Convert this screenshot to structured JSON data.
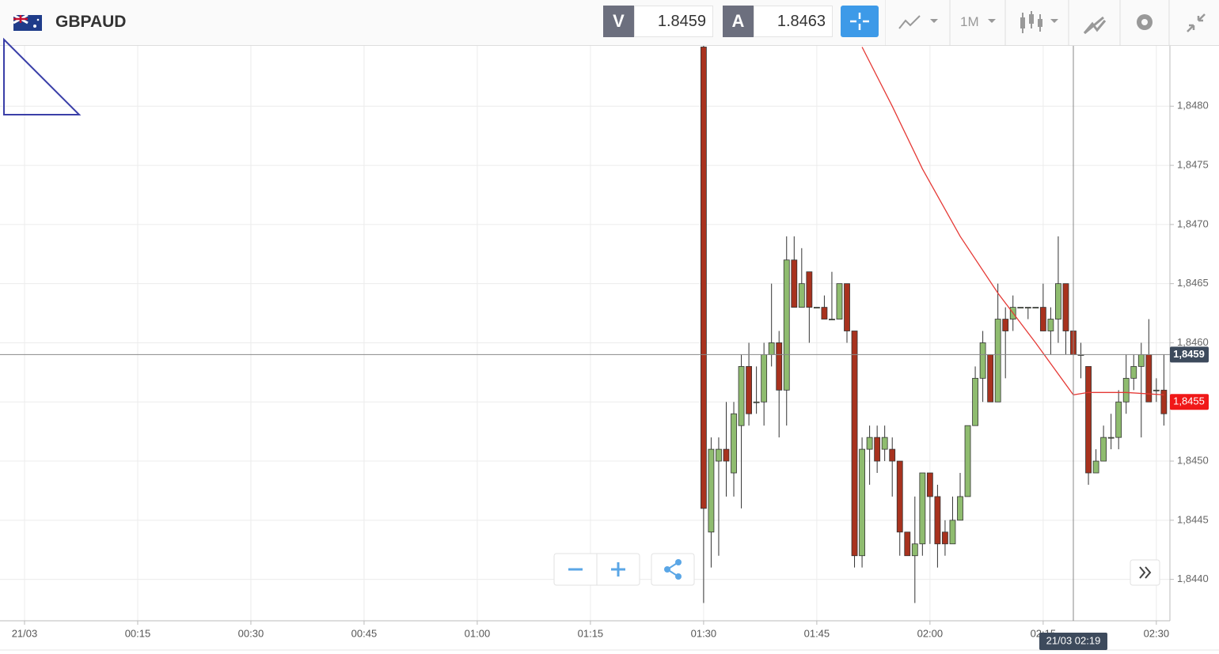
{
  "header": {
    "symbol": "GBPAUD",
    "sell_label": "V",
    "sell_price": 1.8459,
    "buy_label": "A",
    "buy_price": 1.8463,
    "timeframe": "1M"
  },
  "chart_data": {
    "type": "candlestick",
    "x": [
      90,
      91,
      92,
      93,
      94,
      95,
      96,
      97,
      98,
      99,
      100,
      101,
      102,
      103,
      104,
      105,
      106,
      107,
      108,
      109,
      110,
      111,
      112,
      113,
      114,
      115,
      116,
      117,
      118,
      119,
      120,
      121,
      122,
      123,
      124,
      125,
      126,
      127,
      128,
      129,
      130,
      131,
      132,
      133,
      134,
      135,
      136,
      137,
      138,
      139,
      140,
      141,
      142,
      143,
      144,
      145,
      146,
      147,
      148,
      149,
      150,
      151
    ],
    "open": [
      1.8485,
      1.8444,
      1.845,
      1.8451,
      1.8449,
      1.8453,
      1.8458,
      1.8455,
      1.8455,
      1.8459,
      1.846,
      1.8456,
      1.8467,
      1.8463,
      1.8466,
      1.8463,
      1.8463,
      1.8462,
      1.8462,
      1.8465,
      1.8461,
      1.8442,
      1.8451,
      1.8452,
      1.8451,
      1.8451,
      1.845,
      1.8444,
      1.8442,
      1.8443,
      1.8449,
      1.8447,
      1.8444,
      1.8443,
      1.8445,
      1.8447,
      1.8453,
      1.8457,
      1.8459,
      1.8455,
      1.8462,
      1.8462,
      1.8463,
      1.8463,
      1.8463,
      1.8463,
      1.8461,
      1.8462,
      1.8465,
      1.8461,
      1.8459,
      1.8458,
      1.8449,
      1.845,
      1.8452,
      1.8452,
      1.8455,
      1.8457,
      1.8458,
      1.8459,
      1.8456,
      1.8456
    ],
    "high": [
      1.8486,
      1.8452,
      1.8452,
      1.8455,
      1.8455,
      1.8459,
      1.846,
      1.8458,
      1.846,
      1.8465,
      1.8461,
      1.8469,
      1.8469,
      1.8468,
      1.8466,
      1.8463,
      1.8464,
      1.8466,
      1.8465,
      1.8465,
      1.8461,
      1.8452,
      1.8453,
      1.8453,
      1.8453,
      1.8452,
      1.845,
      1.8444,
      1.8447,
      1.8449,
      1.8449,
      1.8448,
      1.8445,
      1.8447,
      1.8449,
      1.8453,
      1.8458,
      1.8461,
      1.8459,
      1.8465,
      1.8463,
      1.8464,
      1.8463,
      1.8463,
      1.8463,
      1.8465,
      1.8463,
      1.8469,
      1.8465,
      1.8461,
      1.846,
      1.8458,
      1.8451,
      1.8453,
      1.8454,
      1.8456,
      1.8459,
      1.8459,
      1.846,
      1.8462,
      1.8457,
      1.8459
    ],
    "low": [
      1.8438,
      1.8441,
      1.8442,
      1.8447,
      1.8447,
      1.8446,
      1.8453,
      1.8454,
      1.8453,
      1.8458,
      1.8452,
      1.8453,
      1.8463,
      1.8463,
      1.846,
      1.8463,
      1.8462,
      1.8462,
      1.8462,
      1.846,
      1.8441,
      1.8441,
      1.8448,
      1.8449,
      1.845,
      1.8447,
      1.8442,
      1.8442,
      1.8438,
      1.8442,
      1.8443,
      1.8441,
      1.8442,
      1.8443,
      1.8445,
      1.8447,
      1.8453,
      1.8455,
      1.8455,
      1.8455,
      1.8457,
      1.8461,
      1.8463,
      1.8462,
      1.8463,
      1.8461,
      1.8459,
      1.846,
      1.8459,
      1.8457,
      1.8457,
      1.8448,
      1.8449,
      1.845,
      1.8451,
      1.8451,
      1.8454,
      1.8456,
      1.8452,
      1.8455,
      1.8455,
      1.8453
    ],
    "close": [
      1.8446,
      1.8451,
      1.8451,
      1.845,
      1.8454,
      1.8458,
      1.8454,
      1.8455,
      1.8459,
      1.846,
      1.8456,
      1.8467,
      1.8463,
      1.8465,
      1.8463,
      1.8463,
      1.8462,
      1.8462,
      1.8465,
      1.8461,
      1.8442,
      1.8451,
      1.8452,
      1.845,
      1.8452,
      1.845,
      1.8444,
      1.8442,
      1.8443,
      1.8449,
      1.8447,
      1.8443,
      1.8443,
      1.8445,
      1.8447,
      1.8453,
      1.8457,
      1.846,
      1.8455,
      1.8462,
      1.8461,
      1.8463,
      1.8463,
      1.8463,
      1.8463,
      1.8461,
      1.8462,
      1.8465,
      1.8461,
      1.8459,
      1.8459,
      1.8449,
      1.845,
      1.8452,
      1.8452,
      1.8455,
      1.8457,
      1.8458,
      1.8459,
      1.8455,
      1.8456,
      1.8454
    ],
    "up_color": "#8fbc6f",
    "down_color": "#a8321e",
    "xlim": [
      -3.25,
      151.8
    ],
    "ylim": [
      1.84365,
      1.84851
    ],
    "xticks": [
      {
        "value": 0,
        "label": "21/03"
      },
      {
        "value": 15,
        "label": "00:15"
      },
      {
        "value": 30,
        "label": "00:30"
      },
      {
        "value": 45,
        "label": "00:45"
      },
      {
        "value": 60,
        "label": "01:00"
      },
      {
        "value": 75,
        "label": "01:15"
      },
      {
        "value": 90,
        "label": "01:30"
      },
      {
        "value": 105,
        "label": "01:45"
      },
      {
        "value": 120,
        "label": "02:00"
      },
      {
        "value": 135,
        "label": "02:15"
      },
      {
        "value": 150,
        "label": "02:30"
      }
    ],
    "yticks": [
      {
        "value": 1.844,
        "label": "1,8440"
      },
      {
        "value": 1.8445,
        "label": "1,8445"
      },
      {
        "value": 1.845,
        "label": "1,8450"
      },
      {
        "value": 1.8455,
        "label": "1,8455"
      },
      {
        "value": 1.846,
        "label": "1,8460"
      },
      {
        "value": 1.8465,
        "label": "1,8465"
      },
      {
        "value": 1.847,
        "label": "1,8470"
      },
      {
        "value": 1.8475,
        "label": "1,8475"
      },
      {
        "value": 1.848,
        "label": "1,8480"
      }
    ],
    "grid": true,
    "overlay": {
      "color": "#e53935",
      "x": [
        111,
        115,
        119,
        124,
        129,
        134,
        139,
        141,
        146,
        151
      ],
      "values": [
        1.8485,
        1.848,
        1.84747,
        1.8469,
        1.84642,
        1.846,
        1.84556,
        1.84558,
        1.84558,
        1.84556
      ]
    },
    "crosshair": {
      "x": {
        "value": 139,
        "label": "21/03 02:19"
      },
      "y": {
        "value": 1.8459,
        "label": "1,8459"
      }
    },
    "last_price": {
      "value": 1.8455,
      "label": "1,8455"
    }
  }
}
